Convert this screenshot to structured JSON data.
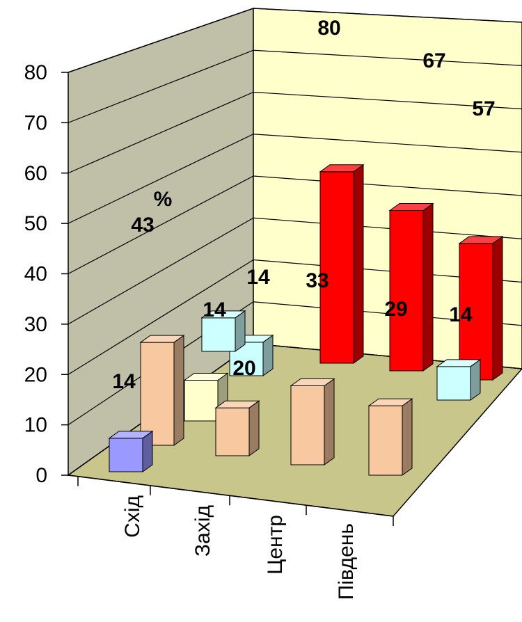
{
  "chart_data": {
    "type": "bar",
    "subtype": "3d-column",
    "categories": [
      "Схід",
      "Захід",
      "Центр",
      "Південь"
    ],
    "series": [
      {
        "values": [
          14,
          14,
          20,
          29
        ],
        "color": "#f8c8a0"
      },
      {
        "values": [
          43,
          14,
          33,
          14
        ],
        "color": "#ccffff"
      },
      {
        "values": [
          null,
          80,
          67,
          57
        ],
        "color": "#ff0000"
      }
    ],
    "highlight": {
      "category": "Схід",
      "value": 14,
      "color": "#9999ff"
    },
    "extra_bars": [
      {
        "category": "Захід",
        "value": 17,
        "color": "#ffffcc"
      }
    ],
    "annotation": "%",
    "data_labels": [
      "14",
      "43",
      "14",
      "14",
      "20",
      "33",
      "80",
      "29",
      "67",
      "14",
      "57"
    ],
    "yticks": [
      "0",
      "10",
      "20",
      "30",
      "40",
      "50",
      "60",
      "70",
      "80"
    ],
    "ylim": [
      0,
      80
    ],
    "grid": true,
    "colors": {
      "left_wall": "#c0bfa8",
      "back_wall": "#ffffcc",
      "floor": "#c8c68a",
      "gridline": "#000000"
    }
  }
}
